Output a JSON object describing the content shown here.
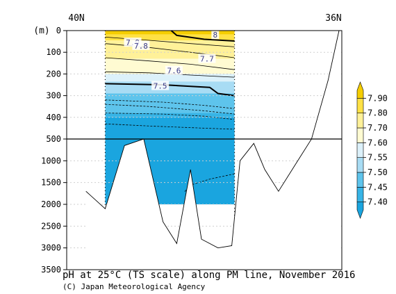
{
  "chart_data": {
    "type": "heatmap",
    "title": "pH at 25°C (TS scale) along PM line, November 2016",
    "credit": "(C) Japan Meteorological Agency",
    "y_unit_label": "(m)",
    "x_edge_labels": {
      "left": "40N",
      "right": "36N"
    },
    "x_range": [
      0,
      1
    ],
    "depth_ticks": [
      0,
      100,
      200,
      300,
      400,
      500,
      1000,
      1500,
      2000,
      2500,
      3000,
      3500
    ],
    "depth_break": 500,
    "upper_range": [
      0,
      500
    ],
    "lower_range": [
      500,
      3500
    ],
    "colorbar": {
      "levels": [
        7.4,
        7.45,
        7.5,
        7.55,
        7.6,
        7.7,
        7.8,
        7.9
      ],
      "labels": [
        "7.40",
        "7.45",
        "7.50",
        "7.55",
        "7.60",
        "7.70",
        "7.80",
        "7.90"
      ],
      "colors": [
        "#1aa5df",
        "#37b4e6",
        "#5ec4ec",
        "#a8dcf4",
        "#dcf1fa",
        "#fffbd2",
        "#fff199",
        "#ffe145",
        "#f5cd00"
      ]
    },
    "section": {
      "x_start": 0.14,
      "x_end": 0.61,
      "max_depth": 2000
    },
    "bands": [
      {
        "color": "#f5cd00",
        "top": 0,
        "bottom": 18
      },
      {
        "color": "#ffe145",
        "top": 18,
        "bottom": 45
      },
      {
        "color": "#fff199",
        "top": 45,
        "bottom": 130
      },
      {
        "color": "#fffbd2",
        "top": 130,
        "bottom": 200
      },
      {
        "color": "#dcf1fa",
        "top": 200,
        "bottom": 235
      },
      {
        "color": "#a8dcf4",
        "top": 235,
        "bottom": 290
      },
      {
        "color": "#5ec4ec",
        "top": 290,
        "bottom": 380
      },
      {
        "color": "#37b4e6",
        "top": 380,
        "bottom": 400
      },
      {
        "color": "#1aa5df",
        "top": 400,
        "bottom": 2000
      }
    ],
    "contours": [
      {
        "label": "8",
        "bold": true,
        "points": [
          [
            0.38,
            0
          ],
          [
            0.4,
            22
          ],
          [
            0.5,
            40
          ],
          [
            0.61,
            48
          ]
        ]
      },
      {
        "label": "7.9",
        "bold": false,
        "points": [
          [
            0.14,
            30
          ],
          [
            0.3,
            45
          ],
          [
            0.45,
            60
          ],
          [
            0.61,
            75
          ]
        ]
      },
      {
        "label": "7.8",
        "bold": false,
        "points": [
          [
            0.14,
            60
          ],
          [
            0.3,
            78
          ],
          [
            0.45,
            100
          ],
          [
            0.61,
            125
          ]
        ]
      },
      {
        "label": "7.7",
        "bold": false,
        "points": [
          [
            0.14,
            125
          ],
          [
            0.3,
            140
          ],
          [
            0.45,
            155
          ],
          [
            0.61,
            180
          ]
        ]
      },
      {
        "label": "7.6",
        "bold": false,
        "points": [
          [
            0.14,
            190
          ],
          [
            0.3,
            195
          ],
          [
            0.45,
            205
          ],
          [
            0.61,
            215
          ]
        ]
      },
      {
        "label": "7.5",
        "bold": true,
        "points": [
          [
            0.14,
            245
          ],
          [
            0.35,
            250
          ],
          [
            0.52,
            262
          ],
          [
            0.55,
            290
          ],
          [
            0.61,
            300
          ]
        ]
      }
    ],
    "label_points": [
      [
        0.54,
        20
      ],
      [
        0.24,
        55
      ],
      [
        0.27,
        70
      ],
      [
        0.51,
        130
      ],
      [
        0.39,
        185
      ],
      [
        0.34,
        255
      ]
    ],
    "bathymetry_x": [
      0.07,
      0.14,
      0.21,
      0.28,
      0.35,
      0.4,
      0.45,
      0.49,
      0.55,
      0.6,
      0.63,
      0.68,
      0.72,
      0.77,
      0.84,
      0.89,
      0.95,
      0.99
    ],
    "bathymetry_depth": [
      1700,
      2100,
      650,
      500,
      2400,
      2900,
      1200,
      2800,
      3000,
      2950,
      1000,
      600,
      1200,
      1700,
      1000,
      500,
      230,
      0
    ],
    "station_x": [
      0.14,
      0.61
    ]
  }
}
